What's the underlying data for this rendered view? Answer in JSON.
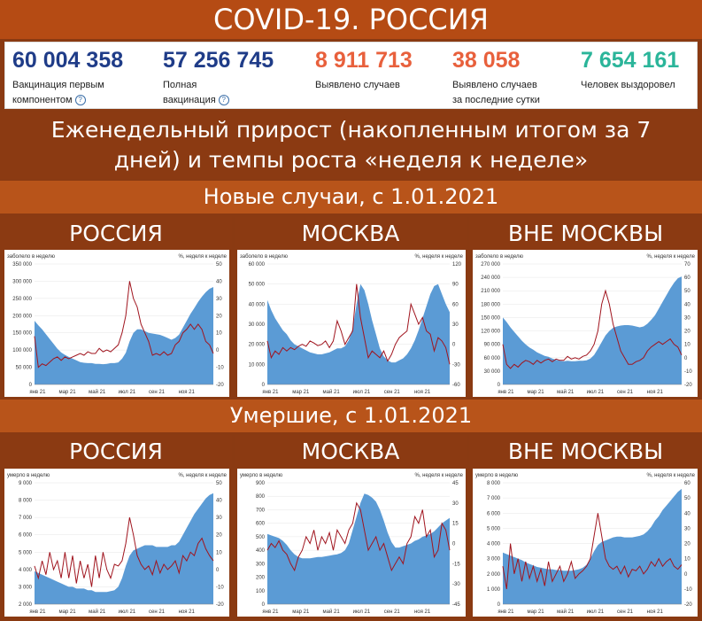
{
  "title": "COVID-19. РОССИЯ",
  "stats": [
    {
      "value": "60 004 358",
      "label1": "Вакцинация первым",
      "label2": "компонентом",
      "help": true,
      "color": "#1f3c88"
    },
    {
      "value": "57 256 745",
      "label1": "Полная",
      "label2": "вакцинация",
      "help": true,
      "color": "#1f3c88"
    },
    {
      "value": "8 911 713",
      "label1": "Выявлено случаев",
      "label2": "",
      "help": false,
      "color": "#e8603c"
    },
    {
      "value": "38 058",
      "label1": "Выявлено случаев",
      "label2": "за последние сутки",
      "help": false,
      "color": "#e8603c"
    },
    {
      "value": "7 654 161",
      "label1": "Человек выздоровел",
      "label2": "",
      "help": false,
      "color": "#2bb59a"
    }
  ],
  "subtitle_line1": "Еженедельный прирост (накопленным итогом за 7",
  "subtitle_line2": "дней) и темпы роста «неделя к неделе»",
  "sections": {
    "cases": "Новые случаи, с 1.01.2021",
    "deaths": "Умершие, с 1.01.2021"
  },
  "regions": [
    "РОССИЯ",
    "МОСКВА",
    "ВНЕ МОСКВЫ"
  ],
  "colors": {
    "area": "#5b9bd5",
    "line": "#a0141e"
  },
  "chart_data": [
    {
      "id": "cases-russia",
      "type": "area",
      "left_label": "заболело в неделю",
      "right_label": "%, неделя к неделе",
      "x_ticks": [
        "янв 21",
        "мар 21",
        "май 21",
        "июл 21",
        "сен 21",
        "ноя 21"
      ],
      "ylim": [
        0,
        350000
      ],
      "y_ticks": [
        "0",
        "50 000",
        "100 000",
        "150 000",
        "200 000",
        "250 000",
        "300 000",
        "350 000"
      ],
      "y2lim": [
        -20,
        50
      ],
      "y2_ticks": [
        "-20",
        "-10",
        "0",
        "10",
        "20",
        "30",
        "40",
        "50"
      ],
      "area": [
        185000,
        172000,
        160000,
        146000,
        132000,
        118000,
        104000,
        93000,
        86000,
        80000,
        75000,
        70000,
        65000,
        63000,
        62000,
        62000,
        60000,
        60000,
        59000,
        60000,
        62000,
        62000,
        64000,
        75000,
        92000,
        125000,
        150000,
        160000,
        160000,
        155000,
        150000,
        148000,
        146000,
        144000,
        140000,
        135000,
        130000,
        135000,
        145000,
        165000,
        185000,
        205000,
        222000,
        240000,
        255000,
        268000,
        278000,
        283000
      ],
      "line": [
        8,
        -10,
        -8,
        -9,
        -7,
        -5,
        -4,
        -6,
        -4,
        -5,
        -4,
        -3,
        -2,
        -3,
        -1,
        -2,
        -2,
        1,
        -1,
        0,
        -1,
        1,
        3,
        10,
        20,
        40,
        30,
        25,
        15,
        10,
        5,
        -3,
        -2,
        -3,
        -1,
        -3,
        -2,
        3,
        5,
        10,
        12,
        15,
        12,
        15,
        12,
        5,
        3,
        -2
      ]
    },
    {
      "id": "cases-moscow",
      "type": "area",
      "left_label": "заболело в неделю",
      "right_label": "%, неделя к неделе",
      "x_ticks": [
        "янв 21",
        "мар 21",
        "май 21",
        "июл 21",
        "сен 21",
        "ноя 21"
      ],
      "ylim": [
        0,
        60000
      ],
      "y_ticks": [
        "0",
        "10 000",
        "20 000",
        "30 000",
        "40 000",
        "50 000",
        "60 000"
      ],
      "y2lim": [
        -60,
        120
      ],
      "y2_ticks": [
        "-60",
        "-30",
        "0",
        "30",
        "60",
        "90",
        "120"
      ],
      "area": [
        42000,
        37000,
        33000,
        30000,
        27000,
        25000,
        22000,
        20000,
        19000,
        18000,
        17000,
        16000,
        15500,
        15000,
        15000,
        15500,
        16000,
        17000,
        18000,
        18000,
        19000,
        22000,
        28000,
        40000,
        50000,
        47000,
        40000,
        32000,
        25000,
        18000,
        14000,
        12000,
        11000,
        11000,
        12000,
        13000,
        15000,
        18000,
        22000,
        27000,
        33000,
        39000,
        45000,
        49000,
        50000,
        45000,
        40000,
        36000
      ],
      "line": [
        5,
        -20,
        -10,
        -15,
        -5,
        -10,
        -5,
        -8,
        -3,
        0,
        -3,
        5,
        2,
        -2,
        0,
        5,
        -5,
        5,
        35,
        20,
        0,
        10,
        20,
        90,
        40,
        10,
        -20,
        -10,
        -15,
        -20,
        -10,
        -25,
        -15,
        0,
        10,
        15,
        20,
        60,
        45,
        30,
        40,
        20,
        15,
        -10,
        10,
        5,
        -5,
        -30
      ]
    },
    {
      "id": "cases-outside",
      "type": "area",
      "left_label": "заболело в неделю",
      "right_label": "%, неделя к неделе",
      "x_ticks": [
        "янв 21",
        "мар 21",
        "май 21",
        "июл 21",
        "сен 21",
        "ноя 21"
      ],
      "ylim": [
        0,
        270000
      ],
      "y_ticks": [
        "0",
        "30 000",
        "60 000",
        "90 000",
        "120 000",
        "150 000",
        "180 000",
        "210 000",
        "240 000",
        "270 000"
      ],
      "y2lim": [
        -20,
        70
      ],
      "y2_ticks": [
        "-20",
        "-10",
        "0",
        "10",
        "20",
        "30",
        "40",
        "50",
        "60",
        "70"
      ],
      "area": [
        150000,
        140000,
        128000,
        118000,
        108000,
        98000,
        90000,
        83000,
        78000,
        72000,
        68000,
        64000,
        62000,
        58000,
        55000,
        53000,
        52000,
        53000,
        52000,
        52000,
        53000,
        53000,
        54000,
        58000,
        66000,
        80000,
        95000,
        110000,
        120000,
        127000,
        130000,
        132000,
        133000,
        133000,
        132000,
        130000,
        128000,
        130000,
        136000,
        145000,
        155000,
        170000,
        185000,
        200000,
        215000,
        228000,
        238000,
        242000
      ],
      "line": [
        10,
        -5,
        -8,
        -5,
        -7,
        -4,
        -2,
        -3,
        -5,
        -2,
        -4,
        -2,
        -1,
        -3,
        -1,
        -2,
        -2,
        1,
        -1,
        0,
        -1,
        1,
        2,
        5,
        10,
        20,
        40,
        50,
        40,
        25,
        15,
        5,
        0,
        -5,
        -5,
        -3,
        -2,
        0,
        5,
        8,
        10,
        12,
        10,
        12,
        14,
        10,
        8,
        2
      ]
    },
    {
      "id": "deaths-russia",
      "type": "area",
      "left_label": "умерло в неделю",
      "right_label": "%, неделя к неделе",
      "x_ticks": [
        "янв 21",
        "мар 21",
        "май 21",
        "июл 21",
        "сен 21",
        "ноя 21"
      ],
      "ylim": [
        2000,
        9000
      ],
      "y_ticks": [
        "2 000",
        "3 000",
        "4 000",
        "5 000",
        "6 000",
        "7 000",
        "8 000",
        "9 000"
      ],
      "y2lim": [
        -20,
        50
      ],
      "y2_ticks": [
        "-20",
        "-10",
        "0",
        "10",
        "20",
        "30",
        "40",
        "50"
      ],
      "area": [
        3900,
        3800,
        3700,
        3600,
        3500,
        3400,
        3300,
        3200,
        3100,
        3000,
        3000,
        2900,
        2900,
        2900,
        2800,
        2800,
        2700,
        2700,
        2700,
        2700,
        2750,
        2800,
        3000,
        3500,
        4200,
        4800,
        5100,
        5200,
        5300,
        5400,
        5400,
        5400,
        5300,
        5300,
        5300,
        5300,
        5400,
        5400,
        5600,
        6000,
        6400,
        6800,
        7200,
        7500,
        7800,
        8100,
        8300,
        8400
      ],
      "line": [
        2,
        -5,
        5,
        -3,
        10,
        0,
        5,
        -5,
        10,
        -5,
        8,
        -8,
        5,
        -5,
        3,
        -10,
        8,
        -5,
        10,
        0,
        -5,
        3,
        2,
        5,
        15,
        30,
        20,
        8,
        3,
        0,
        2,
        -3,
        5,
        -2,
        3,
        0,
        2,
        5,
        -2,
        8,
        5,
        10,
        8,
        15,
        18,
        12,
        8,
        5
      ]
    },
    {
      "id": "deaths-moscow",
      "type": "area",
      "left_label": "умерло в неделю",
      "right_label": "%, неделя к неделе",
      "x_ticks": [
        "янв 21",
        "мар 21",
        "май 21",
        "июл 21",
        "сен 21",
        "ноя 21"
      ],
      "ylim": [
        0,
        900
      ],
      "y_ticks": [
        "0",
        "100",
        "200",
        "300",
        "400",
        "500",
        "600",
        "700",
        "800",
        "900"
      ],
      "y2lim": [
        -45,
        45
      ],
      "y2_ticks": [
        "-45",
        "-30",
        "-15",
        "0",
        "15",
        "30",
        "45"
      ],
      "area": [
        520,
        510,
        500,
        490,
        470,
        440,
        400,
        370,
        350,
        340,
        340,
        340,
        345,
        350,
        350,
        355,
        360,
        365,
        370,
        380,
        400,
        450,
        550,
        650,
        750,
        820,
        810,
        790,
        760,
        700,
        620,
        530,
        460,
        420,
        420,
        430,
        440,
        450,
        470,
        480,
        500,
        510,
        520,
        540,
        570,
        600,
        620,
        640
      ],
      "line": [
        -5,
        0,
        -3,
        2,
        -5,
        -8,
        -15,
        -20,
        -10,
        -5,
        5,
        0,
        10,
        -5,
        5,
        0,
        8,
        -5,
        10,
        5,
        0,
        10,
        15,
        30,
        25,
        10,
        -5,
        0,
        5,
        -5,
        0,
        -10,
        -20,
        -15,
        -10,
        -15,
        0,
        5,
        20,
        15,
        25,
        5,
        10,
        -10,
        -5,
        15,
        10,
        -5
      ]
    },
    {
      "id": "deaths-outside",
      "type": "area",
      "left_label": "умерло в неделю",
      "right_label": "%, неделя к неделе",
      "x_ticks": [
        "янв 21",
        "мар 21",
        "май 21",
        "июл 21",
        "сен 21",
        "ноя 21"
      ],
      "ylim": [
        0,
        8000
      ],
      "y_ticks": [
        "0",
        "1 000",
        "2 000",
        "3 000",
        "4 000",
        "5 000",
        "6 000",
        "7 000",
        "8 000"
      ],
      "y2lim": [
        -20,
        60
      ],
      "y2_ticks": [
        "-20",
        "-10",
        "0",
        "10",
        "20",
        "30",
        "40",
        "50",
        "60"
      ],
      "area": [
        3400,
        3300,
        3200,
        3100,
        3000,
        2900,
        2750,
        2650,
        2550,
        2450,
        2400,
        2350,
        2300,
        2300,
        2250,
        2250,
        2200,
        2200,
        2200,
        2250,
        2300,
        2400,
        2600,
        3000,
        3500,
        3900,
        4100,
        4200,
        4300,
        4400,
        4450,
        4450,
        4400,
        4400,
        4400,
        4450,
        4500,
        4600,
        4800,
        5100,
        5500,
        5800,
        6200,
        6500,
        6800,
        7100,
        7400,
        7600
      ],
      "line": [
        5,
        -10,
        20,
        0,
        10,
        -5,
        8,
        -3,
        5,
        -5,
        3,
        -8,
        8,
        -5,
        0,
        5,
        -5,
        0,
        8,
        -3,
        0,
        2,
        5,
        10,
        25,
        40,
        25,
        10,
        5,
        3,
        5,
        0,
        5,
        -2,
        3,
        2,
        5,
        0,
        3,
        8,
        5,
        10,
        5,
        8,
        10,
        5,
        3,
        6
      ]
    }
  ]
}
